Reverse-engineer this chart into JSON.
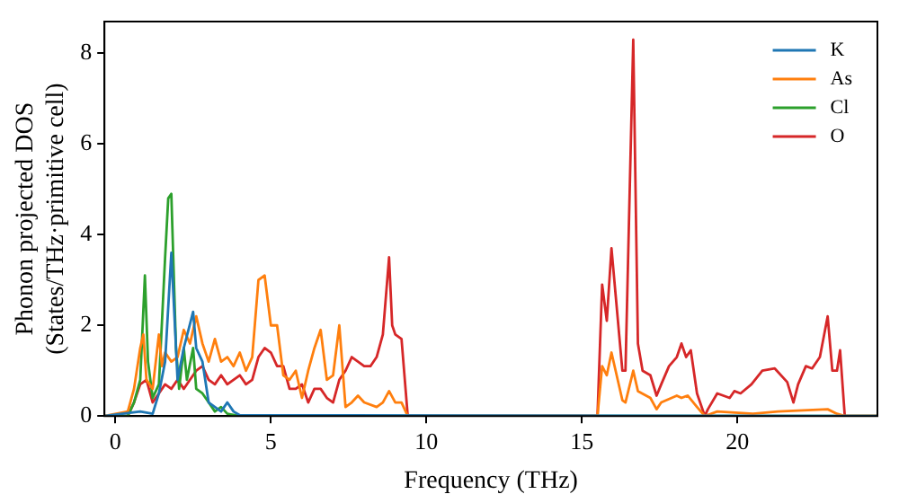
{
  "chart_data": {
    "type": "line",
    "xlabel": "Frequency (THz)",
    "ylabel": "Phonon projected DOS\n(States/THz·primitive cell)",
    "xlim": [
      -0.35,
      24.5
    ],
    "ylim": [
      0,
      8.7
    ],
    "xticks": [
      0,
      5,
      10,
      15,
      20
    ],
    "yticks": [
      0,
      2,
      4,
      6,
      8
    ],
    "grid": false,
    "legend": "top right",
    "marker": "none",
    "line_style": "solid",
    "series": [
      {
        "name": "K",
        "color": "#1f77b4",
        "x": [
          -0.35,
          0.8,
          1.2,
          1.4,
          1.6,
          1.8,
          2.0,
          2.2,
          2.5,
          2.6,
          2.8,
          3.0,
          3.2,
          3.4,
          3.6,
          3.8,
          4.0,
          24.5
        ],
        "values": [
          0,
          0.1,
          0.05,
          0.5,
          1.2,
          3.6,
          0.8,
          1.5,
          2.3,
          1.5,
          1.2,
          0.3,
          0.2,
          0.1,
          0.3,
          0.1,
          0.02,
          0
        ]
      },
      {
        "name": "As",
        "color": "#ff7f0e",
        "x": [
          -0.35,
          0.4,
          0.6,
          0.8,
          0.9,
          1.0,
          1.2,
          1.4,
          1.5,
          1.6,
          1.8,
          2.0,
          2.2,
          2.4,
          2.6,
          2.8,
          3.0,
          3.2,
          3.4,
          3.6,
          3.8,
          4.0,
          4.2,
          4.4,
          4.6,
          4.8,
          5.0,
          5.2,
          5.4,
          5.6,
          5.8,
          6.0,
          6.2,
          6.4,
          6.6,
          6.8,
          7.0,
          7.2,
          7.4,
          7.6,
          7.8,
          8.0,
          8.4,
          8.6,
          8.8,
          9.0,
          9.2,
          9.4,
          15.5,
          15.65,
          15.8,
          15.95,
          16.3,
          16.4,
          16.65,
          16.8,
          17.2,
          17.4,
          17.55,
          18.05,
          18.2,
          18.4,
          18.7,
          18.95,
          19.35,
          20.5,
          21.3,
          22.9,
          23.2,
          23.45,
          24.5
        ],
        "values": [
          0,
          0.1,
          0.6,
          1.5,
          1.8,
          0.8,
          0.6,
          1.8,
          1.1,
          1.4,
          1.2,
          1.3,
          1.9,
          1.6,
          2.2,
          1.6,
          1.2,
          1.7,
          1.2,
          1.3,
          1.1,
          1.4,
          1.0,
          1.3,
          3.0,
          3.1,
          2.0,
          2.0,
          0.9,
          0.8,
          1.0,
          0.4,
          1.0,
          1.5,
          1.9,
          0.8,
          0.9,
          2.0,
          0.2,
          0.3,
          0.45,
          0.3,
          0.2,
          0.3,
          0.55,
          0.3,
          0.3,
          0,
          0,
          1.1,
          0.9,
          1.4,
          0.35,
          0.3,
          1.0,
          0.55,
          0.4,
          0.15,
          0.3,
          0.45,
          0.4,
          0.45,
          0.2,
          0,
          0.1,
          0.05,
          0.1,
          0.15,
          0.05,
          0,
          0
        ]
      },
      {
        "name": "Cl",
        "color": "#2ca02c",
        "x": [
          -0.35,
          0.4,
          0.6,
          0.8,
          0.95,
          1.05,
          1.2,
          1.4,
          1.6,
          1.7,
          1.8,
          1.95,
          2.05,
          2.2,
          2.3,
          2.5,
          2.6,
          2.8,
          3.0,
          3.2,
          3.4,
          3.6,
          4.0,
          24.5
        ],
        "values": [
          0,
          0,
          0.3,
          0.8,
          3.1,
          1.2,
          0.4,
          0.7,
          3.5,
          4.8,
          4.9,
          1.5,
          0.6,
          1.5,
          0.8,
          1.5,
          0.6,
          0.5,
          0.3,
          0.1,
          0.2,
          0.05,
          0,
          0
        ]
      },
      {
        "name": "O",
        "color": "#d62728",
        "x": [
          -0.35,
          0.4,
          0.6,
          0.8,
          1.0,
          1.2,
          1.4,
          1.6,
          1.8,
          2.0,
          2.2,
          2.4,
          2.6,
          2.8,
          3.0,
          3.2,
          3.4,
          3.6,
          3.8,
          4.0,
          4.2,
          4.4,
          4.6,
          4.8,
          5.0,
          5.2,
          5.4,
          5.6,
          5.8,
          6.0,
          6.2,
          6.4,
          6.6,
          6.8,
          7.0,
          7.2,
          7.4,
          7.6,
          7.8,
          8.0,
          8.2,
          8.4,
          8.6,
          8.8,
          8.9,
          9.0,
          9.2,
          9.4,
          15.5,
          15.65,
          15.8,
          15.95,
          16.3,
          16.4,
          16.65,
          16.8,
          16.95,
          17.2,
          17.4,
          17.55,
          17.8,
          18.05,
          18.2,
          18.35,
          18.5,
          18.7,
          18.95,
          19.05,
          19.35,
          19.75,
          19.9,
          20.1,
          20.45,
          20.8,
          21.2,
          21.6,
          21.8,
          21.95,
          22.2,
          22.4,
          22.65,
          22.9,
          23.05,
          23.2,
          23.3,
          23.45,
          24.5
        ],
        "values": [
          0,
          0,
          0.3,
          0.7,
          0.8,
          0.3,
          0.5,
          0.7,
          0.6,
          0.8,
          0.6,
          0.8,
          1.0,
          1.1,
          0.8,
          0.7,
          0.9,
          0.7,
          0.8,
          0.9,
          0.7,
          0.8,
          1.3,
          1.5,
          1.4,
          1.1,
          1.1,
          0.6,
          0.6,
          0.7,
          0.3,
          0.6,
          0.6,
          0.4,
          0.3,
          0.8,
          1.0,
          1.3,
          1.2,
          1.1,
          1.1,
          1.3,
          1.8,
          3.5,
          2.0,
          1.8,
          1.7,
          0,
          0,
          2.9,
          2.1,
          3.7,
          1.0,
          1.0,
          8.3,
          1.6,
          1.0,
          0.9,
          0.45,
          0.7,
          1.1,
          1.3,
          1.6,
          1.3,
          1.45,
          0.5,
          0,
          0.15,
          0.5,
          0.4,
          0.55,
          0.5,
          0.7,
          1.0,
          1.05,
          0.75,
          0.3,
          0.7,
          1.1,
          1.05,
          1.3,
          2.2,
          1.0,
          1.0,
          1.45,
          0,
          0
        ]
      }
    ]
  }
}
